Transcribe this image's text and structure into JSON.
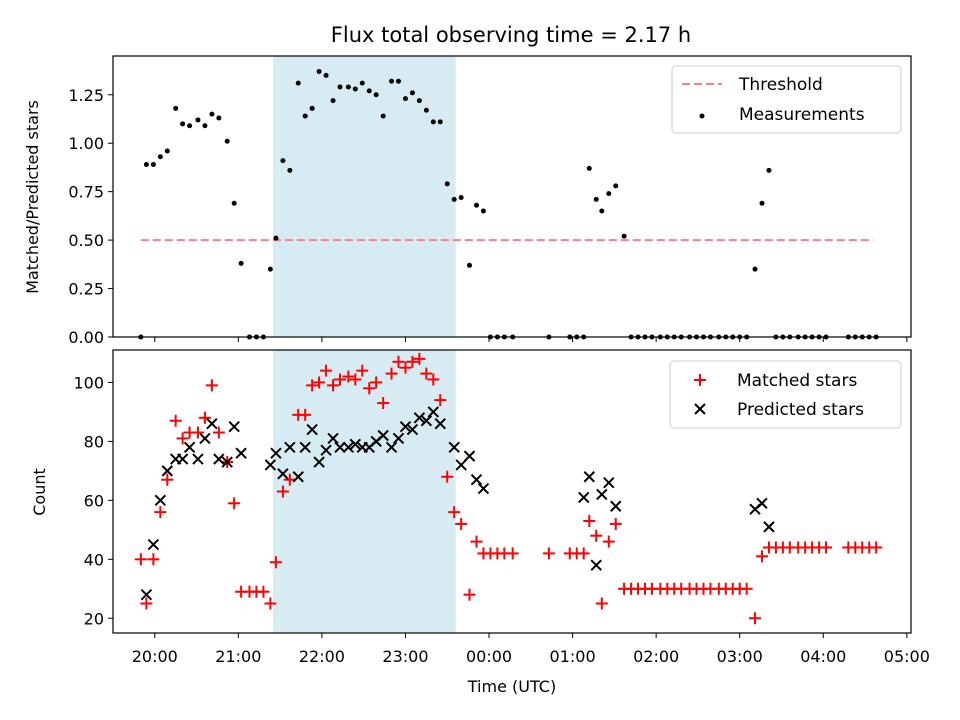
{
  "figure": {
    "title": "Flux total observing time = 2.17 h",
    "xlabel": "Time (UTC)"
  },
  "colors": {
    "threshold": "#ff7f7f",
    "measurement": "#000000",
    "matched": "#ff0000",
    "predicted": "#000000",
    "shade": "#add8e6"
  },
  "chart_data": [
    {
      "type": "scatter",
      "ylabel": "Matched/Predicted stars",
      "xlim": [
        "19:30",
        "05:03"
      ],
      "ylim": [
        0,
        1.45
      ],
      "yticks": [
        "0.00",
        "0.25",
        "0.50",
        "0.75",
        "1.00",
        "1.25"
      ],
      "xticks": [
        "20:00",
        "21:00",
        "22:00",
        "23:00",
        "00:00",
        "01:00",
        "02:00",
        "03:00",
        "04:00",
        "05:00"
      ],
      "shaded_interval": [
        "21:25",
        "23:36"
      ],
      "legend": {
        "position": "top-right",
        "entries": [
          "Threshold",
          "Measurements"
        ]
      },
      "threshold": {
        "name": "Threshold",
        "y": 0.5,
        "x_start": "19:50",
        "x_end": "04:36"
      },
      "series": [
        {
          "name": "Measurements",
          "points": [
            [
              "19:50",
              0.0
            ],
            [
              "19:54",
              0.89
            ],
            [
              "19:59",
              0.89
            ],
            [
              "20:04",
              0.93
            ],
            [
              "20:09",
              0.96
            ],
            [
              "20:15",
              1.18
            ],
            [
              "20:20",
              1.1
            ],
            [
              "20:25",
              1.09
            ],
            [
              "20:31",
              1.12
            ],
            [
              "20:36",
              1.09
            ],
            [
              "20:41",
              1.15
            ],
            [
              "20:46",
              1.13
            ],
            [
              "20:52",
              1.01
            ],
            [
              "20:57",
              0.69
            ],
            [
              "21:02",
              0.38
            ],
            [
              "21:08",
              0.0
            ],
            [
              "21:13",
              0.0
            ],
            [
              "21:18",
              0.0
            ],
            [
              "21:23",
              0.35
            ],
            [
              "21:27",
              0.51
            ],
            [
              "21:32",
              0.91
            ],
            [
              "21:37",
              0.86
            ],
            [
              "21:43",
              1.31
            ],
            [
              "21:48",
              1.14
            ],
            [
              "21:53",
              1.18
            ],
            [
              "21:58",
              1.37
            ],
            [
              "22:03",
              1.35
            ],
            [
              "22:08",
              1.22
            ],
            [
              "22:13",
              1.29
            ],
            [
              "22:19",
              1.29
            ],
            [
              "22:24",
              1.28
            ],
            [
              "22:29",
              1.31
            ],
            [
              "22:34",
              1.27
            ],
            [
              "22:39",
              1.25
            ],
            [
              "22:44",
              1.14
            ],
            [
              "22:50",
              1.32
            ],
            [
              "22:55",
              1.32
            ],
            [
              "23:00",
              1.23
            ],
            [
              "23:05",
              1.26
            ],
            [
              "23:10",
              1.22
            ],
            [
              "23:15",
              1.17
            ],
            [
              "23:20",
              1.11
            ],
            [
              "23:25",
              1.11
            ],
            [
              "23:30",
              0.79
            ],
            [
              "23:35",
              0.71
            ],
            [
              "23:40",
              0.72
            ],
            [
              "23:46",
              0.37
            ],
            [
              "23:51",
              0.68
            ],
            [
              "23:56",
              0.65
            ],
            [
              "00:01",
              0.0
            ],
            [
              "00:06",
              0.0
            ],
            [
              "00:11",
              0.0
            ],
            [
              "00:17",
              0.0
            ],
            [
              "00:43",
              0.0
            ],
            [
              "00:58",
              0.0
            ],
            [
              "01:03",
              0.0
            ],
            [
              "01:08",
              0.0
            ],
            [
              "01:12",
              0.87
            ],
            [
              "01:17",
              0.71
            ],
            [
              "01:21",
              0.65
            ],
            [
              "01:26",
              0.74
            ],
            [
              "01:31",
              0.78
            ],
            [
              "01:37",
              0.52
            ],
            [
              "01:42",
              0.0
            ],
            [
              "01:47",
              0.0
            ],
            [
              "01:52",
              0.0
            ],
            [
              "01:57",
              0.0
            ],
            [
              "02:03",
              0.0
            ],
            [
              "02:08",
              0.0
            ],
            [
              "02:13",
              0.0
            ],
            [
              "02:18",
              0.0
            ],
            [
              "02:24",
              0.0
            ],
            [
              "02:29",
              0.0
            ],
            [
              "02:34",
              0.0
            ],
            [
              "02:39",
              0.0
            ],
            [
              "02:45",
              0.0
            ],
            [
              "02:50",
              0.0
            ],
            [
              "02:55",
              0.0
            ],
            [
              "03:00",
              0.0
            ],
            [
              "03:05",
              0.0
            ],
            [
              "03:11",
              0.35
            ],
            [
              "03:16",
              0.69
            ],
            [
              "03:21",
              0.86
            ],
            [
              "03:26",
              0.0
            ],
            [
              "03:31",
              0.0
            ],
            [
              "03:36",
              0.0
            ],
            [
              "03:42",
              0.0
            ],
            [
              "03:47",
              0.0
            ],
            [
              "03:52",
              0.0
            ],
            [
              "03:57",
              0.0
            ],
            [
              "04:02",
              0.0
            ],
            [
              "04:18",
              0.0
            ],
            [
              "04:23",
              0.0
            ],
            [
              "04:28",
              0.0
            ],
            [
              "04:33",
              0.0
            ],
            [
              "04:38",
              0.0
            ]
          ]
        }
      ]
    },
    {
      "type": "scatter",
      "ylabel": "Count",
      "xlabel": "Time (UTC)",
      "xlim": [
        "19:30",
        "05:03"
      ],
      "ylim": [
        15,
        111
      ],
      "yticks": [
        "20",
        "40",
        "60",
        "80",
        "100"
      ],
      "xticks": [
        "20:00",
        "21:00",
        "22:00",
        "23:00",
        "00:00",
        "01:00",
        "02:00",
        "03:00",
        "04:00",
        "05:00"
      ],
      "shaded_interval": [
        "21:25",
        "23:36"
      ],
      "legend": {
        "position": "top-right",
        "entries": [
          "Matched stars",
          "Predicted stars"
        ]
      },
      "series": [
        {
          "name": "Matched stars",
          "marker": "+",
          "points": [
            [
              "19:50",
              40
            ],
            [
              "19:54",
              25
            ],
            [
              "19:59",
              40
            ],
            [
              "20:04",
              56
            ],
            [
              "20:09",
              67
            ],
            [
              "20:15",
              87
            ],
            [
              "20:20",
              81
            ],
            [
              "20:25",
              83
            ],
            [
              "20:31",
              83
            ],
            [
              "20:36",
              88
            ],
            [
              "20:41",
              99
            ],
            [
              "20:46",
              83
            ],
            [
              "20:52",
              73
            ],
            [
              "20:57",
              59
            ],
            [
              "21:02",
              29
            ],
            [
              "21:08",
              29
            ],
            [
              "21:13",
              29
            ],
            [
              "21:18",
              29
            ],
            [
              "21:23",
              25
            ],
            [
              "21:27",
              39
            ],
            [
              "21:32",
              63
            ],
            [
              "21:37",
              67
            ],
            [
              "21:43",
              89
            ],
            [
              "21:48",
              89
            ],
            [
              "21:53",
              99
            ],
            [
              "21:58",
              100
            ],
            [
              "22:03",
              104
            ],
            [
              "22:08",
              99
            ],
            [
              "22:13",
              101
            ],
            [
              "22:19",
              102
            ],
            [
              "22:24",
              101
            ],
            [
              "22:29",
              104
            ],
            [
              "22:34",
              98
            ],
            [
              "22:39",
              100
            ],
            [
              "22:44",
              93
            ],
            [
              "22:50",
              103
            ],
            [
              "22:55",
              107
            ],
            [
              "23:00",
              105
            ],
            [
              "23:05",
              107
            ],
            [
              "23:10",
              108
            ],
            [
              "23:15",
              103
            ],
            [
              "23:20",
              101
            ],
            [
              "23:25",
              94
            ],
            [
              "23:30",
              68
            ],
            [
              "23:35",
              56
            ],
            [
              "23:40",
              52
            ],
            [
              "23:46",
              28
            ],
            [
              "23:51",
              46
            ],
            [
              "23:56",
              42
            ],
            [
              "00:01",
              42
            ],
            [
              "00:06",
              42
            ],
            [
              "00:11",
              42
            ],
            [
              "00:17",
              42
            ],
            [
              "00:43",
              42
            ],
            [
              "00:58",
              42
            ],
            [
              "01:03",
              42
            ],
            [
              "01:08",
              42
            ],
            [
              "01:12",
              53
            ],
            [
              "01:17",
              48
            ],
            [
              "01:21",
              25
            ],
            [
              "01:26",
              46
            ],
            [
              "01:31",
              52
            ],
            [
              "01:37",
              30
            ],
            [
              "01:42",
              30
            ],
            [
              "01:47",
              30
            ],
            [
              "01:52",
              30
            ],
            [
              "01:57",
              30
            ],
            [
              "02:03",
              30
            ],
            [
              "02:08",
              30
            ],
            [
              "02:13",
              30
            ],
            [
              "02:18",
              30
            ],
            [
              "02:24",
              30
            ],
            [
              "02:29",
              30
            ],
            [
              "02:34",
              30
            ],
            [
              "02:39",
              30
            ],
            [
              "02:45",
              30
            ],
            [
              "02:50",
              30
            ],
            [
              "02:55",
              30
            ],
            [
              "03:00",
              30
            ],
            [
              "03:05",
              30
            ],
            [
              "03:11",
              20
            ],
            [
              "03:16",
              41
            ],
            [
              "03:21",
              44
            ],
            [
              "03:26",
              44
            ],
            [
              "03:31",
              44
            ],
            [
              "03:36",
              44
            ],
            [
              "03:42",
              44
            ],
            [
              "03:47",
              44
            ],
            [
              "03:52",
              44
            ],
            [
              "03:57",
              44
            ],
            [
              "04:02",
              44
            ],
            [
              "04:18",
              44
            ],
            [
              "04:23",
              44
            ],
            [
              "04:28",
              44
            ],
            [
              "04:33",
              44
            ],
            [
              "04:38",
              44
            ]
          ]
        },
        {
          "name": "Predicted stars",
          "marker": "x",
          "points": [
            [
              "19:54",
              28
            ],
            [
              "19:59",
              45
            ],
            [
              "20:04",
              60
            ],
            [
              "20:09",
              70
            ],
            [
              "20:15",
              74
            ],
            [
              "20:20",
              74
            ],
            [
              "20:25",
              78
            ],
            [
              "20:31",
              74
            ],
            [
              "20:36",
              81
            ],
            [
              "20:41",
              86
            ],
            [
              "20:46",
              74
            ],
            [
              "20:52",
              73
            ],
            [
              "20:57",
              85
            ],
            [
              "21:02",
              76
            ],
            [
              "21:23",
              72
            ],
            [
              "21:27",
              76
            ],
            [
              "21:32",
              69
            ],
            [
              "21:37",
              78
            ],
            [
              "21:43",
              68
            ],
            [
              "21:48",
              78
            ],
            [
              "21:53",
              84
            ],
            [
              "21:58",
              73
            ],
            [
              "22:03",
              77
            ],
            [
              "22:08",
              81
            ],
            [
              "22:13",
              78
            ],
            [
              "22:19",
              78
            ],
            [
              "22:24",
              79
            ],
            [
              "22:29",
              78
            ],
            [
              "22:34",
              78
            ],
            [
              "22:39",
              80
            ],
            [
              "22:44",
              82
            ],
            [
              "22:50",
              78
            ],
            [
              "22:55",
              81
            ],
            [
              "23:00",
              85
            ],
            [
              "23:05",
              84
            ],
            [
              "23:10",
              88
            ],
            [
              "23:15",
              87
            ],
            [
              "23:20",
              90
            ],
            [
              "23:25",
              86
            ],
            [
              "23:35",
              78
            ],
            [
              "23:40",
              72
            ],
            [
              "23:46",
              75
            ],
            [
              "23:51",
              67
            ],
            [
              "23:56",
              64
            ],
            [
              "01:08",
              61
            ],
            [
              "01:12",
              68
            ],
            [
              "01:17",
              38
            ],
            [
              "01:21",
              62
            ],
            [
              "01:26",
              66
            ],
            [
              "01:31",
              58
            ],
            [
              "03:11",
              57
            ],
            [
              "03:16",
              59
            ],
            [
              "03:21",
              51
            ]
          ]
        }
      ]
    }
  ]
}
